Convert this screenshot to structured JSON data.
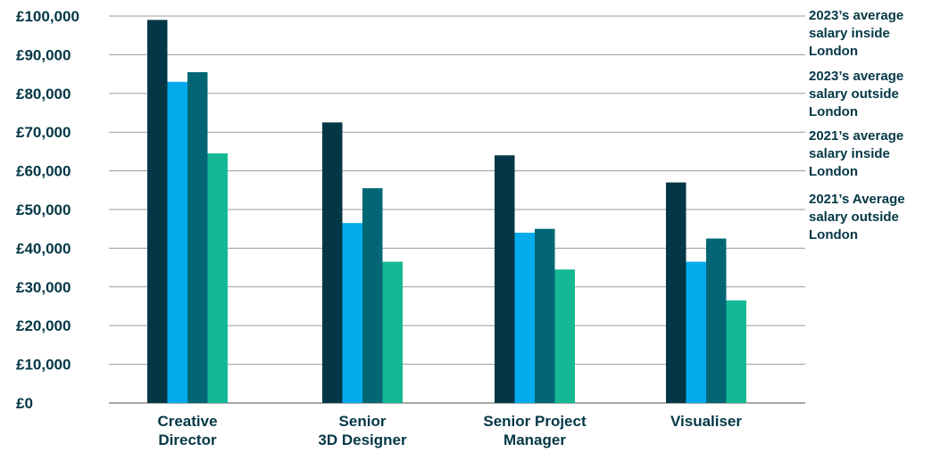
{
  "chart_data": {
    "type": "bar",
    "categories": [
      [
        "Creative",
        "Director"
      ],
      [
        "Senior",
        "3D Designer"
      ],
      [
        "Senior Project",
        "Manager"
      ],
      [
        "Visualiser"
      ]
    ],
    "series": [
      {
        "name": [
          "2023’s average",
          "salary inside",
          "London"
        ],
        "color": "#033746",
        "values": [
          99000,
          72500,
          64000,
          57000
        ]
      },
      {
        "name": [
          "2023’s average",
          "salary outside",
          "London"
        ],
        "color": "#04abed",
        "values": [
          83000,
          46500,
          44000,
          36500
        ]
      },
      {
        "name": [
          "2021’s average",
          "salary inside",
          "London"
        ],
        "color": "#026675",
        "values": [
          85500,
          55500,
          45000,
          42500
        ]
      },
      {
        "name": [
          "2021’s Average",
          "salary outside",
          "London"
        ],
        "color": "#14b894",
        "values": [
          64500,
          36500,
          34500,
          26500
        ]
      }
    ],
    "yticks": [
      "£0",
      "£10,000",
      "£20,000",
      "£30,000",
      "£40,000",
      "£50,000",
      "£60,000",
      "£70,000",
      "£80,000",
      "£90,000",
      "£100,000"
    ],
    "ylim": [
      0,
      100000
    ],
    "grid": true,
    "legend_position": "right"
  }
}
